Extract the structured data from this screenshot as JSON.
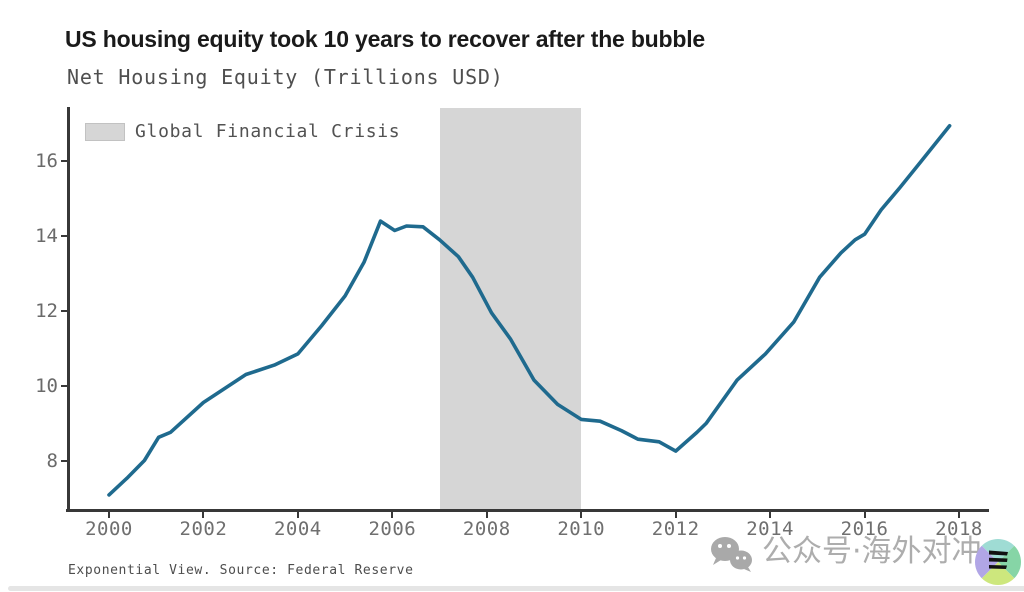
{
  "header": {
    "title": "US housing equity took 10 years to recover after the bubble",
    "subtitle": "Net Housing Equity (Trillions USD)"
  },
  "legend": {
    "label": "Global Financial Crisis",
    "swatch_color": "#d6d6d6"
  },
  "footer": {
    "source_note": "Exponential View. Source: Federal Reserve"
  },
  "watermark": {
    "icon": "wechat-icon",
    "text": "公众号·海外对冲",
    "color": "#9f9f9f"
  },
  "logo": {
    "icon": "channel-quadrant-logo",
    "colors": [
      "#9fdcd4",
      "#86d5a6",
      "#cde77d",
      "#b1a6e6"
    ],
    "stripe_color": "#111111"
  },
  "chart_data": {
    "type": "line",
    "title": "US housing equity took 10 years to recover after the bubble",
    "ylabel": "Net Housing Equity (Trillions USD)",
    "xlabel": "",
    "grid": false,
    "legend_position": "top-left",
    "xlim": [
      1999.1,
      2018.6
    ],
    "ylim": [
      6.6,
      17.4
    ],
    "x_ticks": [
      2000,
      2002,
      2004,
      2006,
      2008,
      2010,
      2012,
      2014,
      2016,
      2018
    ],
    "y_ticks": [
      8,
      10,
      12,
      14,
      16
    ],
    "shaded_region": {
      "label": "Global Financial Crisis",
      "x_start": 2007,
      "x_end": 2010,
      "color": "#d6d6d6"
    },
    "series": [
      {
        "name": "Net Housing Equity (Trillions USD)",
        "color": "#1f6a8e",
        "points": [
          [
            2000.0,
            7.08
          ],
          [
            2000.4,
            7.55
          ],
          [
            2000.75,
            8.0
          ],
          [
            2001.05,
            8.62
          ],
          [
            2001.3,
            8.75
          ],
          [
            2002.0,
            9.55
          ],
          [
            2002.9,
            10.3
          ],
          [
            2003.5,
            10.55
          ],
          [
            2004.0,
            10.85
          ],
          [
            2004.5,
            11.6
          ],
          [
            2005.0,
            12.4
          ],
          [
            2005.4,
            13.3
          ],
          [
            2005.75,
            14.4
          ],
          [
            2006.05,
            14.15
          ],
          [
            2006.3,
            14.27
          ],
          [
            2006.65,
            14.25
          ],
          [
            2007.0,
            13.9
          ],
          [
            2007.4,
            13.45
          ],
          [
            2007.7,
            12.9
          ],
          [
            2008.1,
            11.95
          ],
          [
            2008.5,
            11.25
          ],
          [
            2009.0,
            10.15
          ],
          [
            2009.5,
            9.5
          ],
          [
            2010.0,
            9.1
          ],
          [
            2010.4,
            9.05
          ],
          [
            2010.85,
            8.8
          ],
          [
            2011.2,
            8.57
          ],
          [
            2011.65,
            8.5
          ],
          [
            2012.0,
            8.25
          ],
          [
            2012.45,
            8.75
          ],
          [
            2012.65,
            9.0
          ],
          [
            2013.3,
            10.15
          ],
          [
            2013.9,
            10.85
          ],
          [
            2014.5,
            11.7
          ],
          [
            2015.05,
            12.9
          ],
          [
            2015.5,
            13.55
          ],
          [
            2015.8,
            13.9
          ],
          [
            2016.0,
            14.05
          ],
          [
            2016.35,
            14.7
          ],
          [
            2016.75,
            15.3
          ],
          [
            2017.2,
            16.0
          ],
          [
            2017.8,
            16.95
          ]
        ]
      }
    ]
  }
}
